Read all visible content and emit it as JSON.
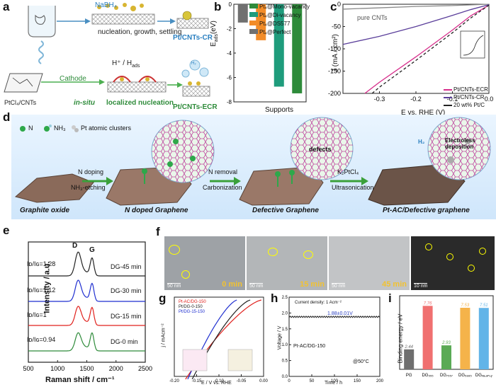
{
  "panels": {
    "a": {
      "letter": "a",
      "reagent": "NaBH₄",
      "step1": "nucleation, growth, settling",
      "product1": "Pt/CNTs-CR",
      "precursor": "PtCl₄/CNTs",
      "cathode": "Cathode",
      "hads": "H⁺ / H",
      "hads_sub": "ads",
      "insitu": "in-situ",
      "localized": "localized nucleation",
      "product2": "Pt/CNTs-ECR",
      "h2": "H₂"
    },
    "b": {
      "letter": "b",
      "ylabel": "E",
      "ylabel_sub": "ads",
      "ylabel_unit": "(eV)",
      "xlabel": "Supports",
      "legend": [
        "Pt₄@Mono-vacancy",
        "Pt₄@Di-vacancy",
        "Pt₄@DS577",
        "Pt₄@Perfect"
      ]
    },
    "c": {
      "letter": "c",
      "ylabel": "J (mA / cm²)",
      "xlabel": "E vs. RHE (V)",
      "annotation": "pure CNTs",
      "legend": [
        "Pt/CNTs-ECR",
        "Pt/CNTs-CR",
        "20 wt% Pt/C"
      ]
    },
    "d": {
      "letter": "d",
      "legend_n": "N",
      "legend_nh3": "NH₃",
      "legend_pt": "Pt atomic clusters",
      "step1_top": "N doping",
      "step1_bottom": "NH₃-etching",
      "step2_top": "N removal",
      "step2_bottom": "Carbonization",
      "step3_top": "K₂PtCl₄",
      "step3_bottom": "Ultrasonication",
      "stage1": "Graphite oxide",
      "stage2": "N doped Graphene",
      "stage3": "Defective Graphene",
      "stage4": "Pt-AC/Defective graphene",
      "defects": "defects",
      "electroless": "Electroless deposition",
      "h2": "H₂"
    },
    "e": {
      "letter": "e",
      "ylabel": "Intensity / a.u.",
      "xlabel": "Raman shift / cm⁻¹",
      "peak_d": "D",
      "peak_g": "G",
      "ratios": [
        "Iᴅ/Iɢ=1.28",
        "Iᴅ/Iɢ=1.12",
        "Iᴅ/Iɢ=1",
        "Iᴅ/Iɢ=0.94"
      ],
      "samples": [
        "DG-45 min",
        "DG-30 min",
        "DG-15 min",
        "DG-0 min"
      ]
    },
    "f": {
      "letter": "f",
      "scale_bars": [
        "50 nm",
        "50 nm",
        "50 nm",
        "10 nm"
      ],
      "times": [
        "0 min",
        "15 min",
        "45 min"
      ]
    },
    "g": {
      "letter": "g",
      "ylabel": "j / mAcm⁻²",
      "xlabel": "E / V vs. RHE",
      "legend": [
        "Pt-AC/DG-150",
        "Pt/DG-0-150",
        "Pt/DG-15-150"
      ]
    },
    "h": {
      "letter": "h",
      "current": "Current density: 1 Acm⁻²",
      "voltage": "1.88±0.01V",
      "sample": "Pt-AC/DG-150",
      "temp": "@50°C",
      "ylabel": "Voltage / V",
      "xlabel": "Time / h"
    },
    "i": {
      "letter": "i",
      "ylabel": "Binding energy / eV"
    }
  },
  "chart_data": [
    {
      "id": "b",
      "type": "bar",
      "title": "",
      "xlabel": "Supports",
      "ylabel": "E_ads (eV)",
      "categories": [
        "Pt4@Perfect",
        "Pt4@DS577",
        "Pt4@Di-vacancy",
        "Pt4@Mono-vacancy"
      ],
      "values": [
        -1.5,
        -2.95,
        -6.75,
        -7.3
      ],
      "colors": [
        "#707070",
        "#f28c28",
        "#1f9c7c",
        "#2e8b3a"
      ],
      "ylim": [
        0,
        -8
      ],
      "yticks": [
        0,
        -2,
        -4,
        -6,
        -8
      ]
    },
    {
      "id": "c",
      "type": "line",
      "xlabel": "E vs. RHE (V)",
      "ylabel": "J (mA / cm²)",
      "xlim": [
        -0.4,
        0.0
      ],
      "ylim": [
        -200,
        0
      ],
      "xticks": [
        -0.3,
        -0.2,
        -0.1,
        0.0
      ],
      "yticks": [
        -200,
        -150,
        -100,
        -50,
        0
      ],
      "series": [
        {
          "name": "pure CNTs",
          "color": "#8a8a8a",
          "dash": "",
          "x": [
            -0.4,
            -0.3,
            -0.2,
            -0.1,
            0.0
          ],
          "y": [
            -11,
            -8,
            -5,
            -3,
            0
          ]
        },
        {
          "name": "Pt/CNTs-ECR",
          "color": "#d62c8a",
          "dash": "",
          "x": [
            -0.34,
            -0.3,
            -0.2,
            -0.1,
            -0.05,
            0.0
          ],
          "y": [
            -200,
            -175,
            -118,
            -58,
            -26,
            -2
          ]
        },
        {
          "name": "Pt/CNTs-CR",
          "color": "#5a3e9a",
          "dash": "",
          "x": [
            -0.4,
            -0.3,
            -0.2,
            -0.1,
            -0.05,
            0.0
          ],
          "y": [
            -90,
            -72,
            -50,
            -25,
            -12,
            -1
          ]
        },
        {
          "name": "20 wt% Pt/C",
          "color": "#222222",
          "dash": "4,3",
          "x": [
            -0.32,
            -0.3,
            -0.2,
            -0.1,
            -0.05,
            0.0
          ],
          "y": [
            -200,
            -186,
            -126,
            -64,
            -31,
            -2
          ]
        }
      ]
    },
    {
      "id": "e",
      "type": "line",
      "xlabel": "Raman shift / cm⁻¹",
      "ylabel": "Intensity / a.u.",
      "xlim": [
        500,
        2500
      ],
      "xticks": [
        500,
        1000,
        1500,
        2000,
        2500
      ],
      "series": [
        {
          "name": "DG-45 min",
          "color": "#222222",
          "ratio": 1.28
        },
        {
          "name": "DG-30 min",
          "color": "#1f2fd0",
          "ratio": 1.12
        },
        {
          "name": "DG-15 min",
          "color": "#e0201c",
          "ratio": 1.0
        },
        {
          "name": "DG-0 min",
          "color": "#2e8b3a",
          "ratio": 0.94
        }
      ]
    },
    {
      "id": "g",
      "type": "line",
      "xlabel": "E / V vs. RHE",
      "ylabel": "j / mAcm⁻²",
      "xlim": [
        -0.2,
        0.0
      ],
      "xticks": [
        -0.2,
        -0.15,
        -0.1,
        -0.05,
        0.0
      ],
      "series": [
        {
          "name": "Pt-AC/DG-150",
          "color": "#e0201c"
        },
        {
          "name": "Pt/DG-0-150",
          "color": "#222222"
        },
        {
          "name": "Pt/DG-15-150",
          "color": "#1f2fd0"
        }
      ]
    },
    {
      "id": "h",
      "type": "line",
      "xlabel": "Time / h",
      "ylabel": "Voltage / V",
      "xlim": [
        0,
        200
      ],
      "ylim": [
        0.0,
        2.5
      ],
      "xticks": [
        0,
        50,
        100,
        150,
        200
      ],
      "yticks": [
        0.0,
        0.5,
        1.0,
        1.5,
        2.0,
        2.5
      ],
      "series": [
        {
          "name": "Pt-AC/DG-150",
          "color": "#222222",
          "x": [
            0,
            200
          ],
          "y": [
            1.88,
            1.88
          ]
        }
      ]
    },
    {
      "id": "i",
      "type": "bar",
      "ylabel": "Binding energy / eV",
      "categories": [
        "PG",
        "DG₅₅₅",
        "DG₇₅₅₇",
        "DG₅₈₈₅",
        "DGᵥₐ꜀ₐₙ꜀ᵧ"
      ],
      "values": [
        2.44,
        7.76,
        2.93,
        7.53,
        7.51
      ],
      "labels": [
        "2.44",
        "7.76",
        "2.93",
        "7.53",
        "7.51"
      ],
      "colors": [
        "#6e6e6e",
        "#f07070",
        "#5aaa55",
        "#f5b34a",
        "#62b4e8"
      ],
      "ylim": [
        0,
        9
      ]
    }
  ]
}
